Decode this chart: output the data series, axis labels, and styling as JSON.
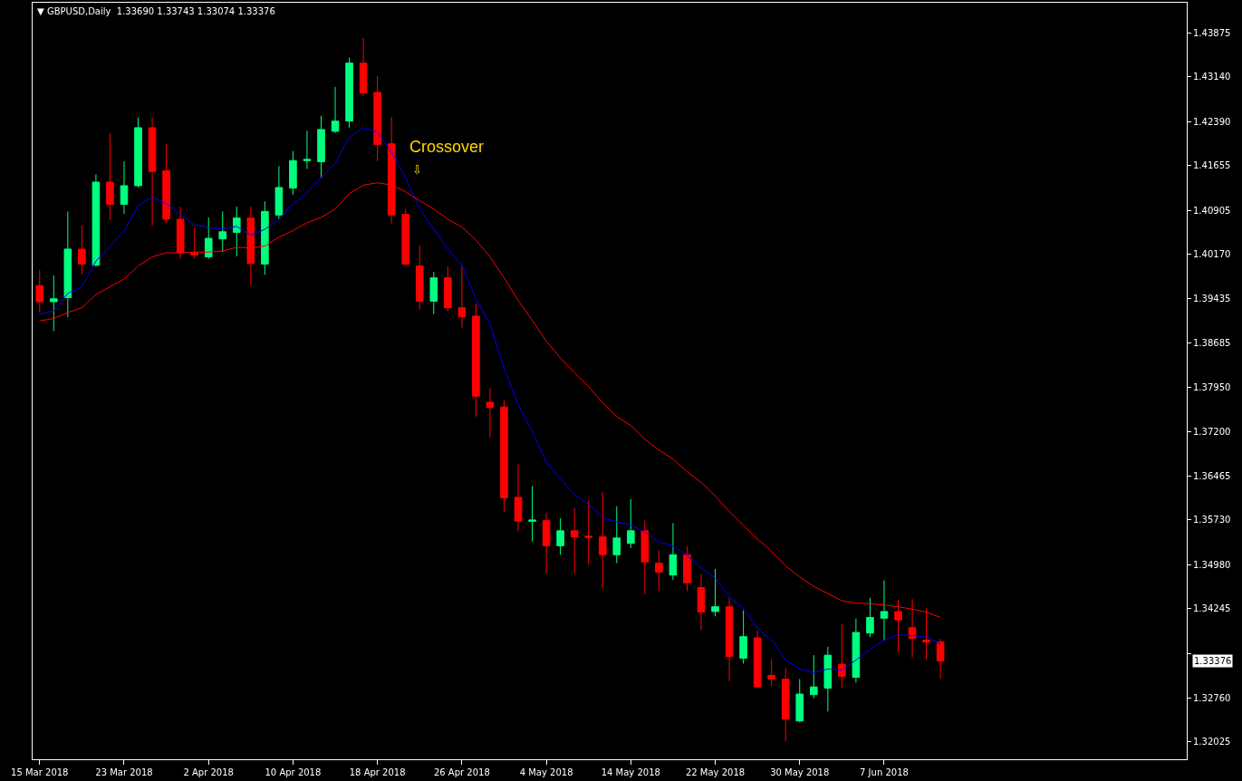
{
  "chart_data": {
    "type": "candlestick",
    "title": "▼ GBPUSD,Daily  1.33690 1.33743 1.33074 1.33376",
    "categories": [
      "15 Mar 2018",
      null,
      null,
      null,
      null,
      null,
      "23 Mar 2018",
      null,
      null,
      null,
      null,
      null,
      "2 Apr 2018",
      null,
      null,
      null,
      null,
      null,
      "10 Apr 2018",
      null,
      null,
      null,
      null,
      null,
      "18 Apr 2018",
      null,
      null,
      null,
      null,
      null,
      "26 Apr 2018",
      null,
      null,
      null,
      null,
      null,
      "4 May 2018",
      null,
      null,
      null,
      null,
      null,
      "14 May 2018",
      null,
      null,
      null,
      null,
      null,
      "22 May 2018",
      null,
      null,
      null,
      null,
      null,
      "30 May 2018",
      null,
      null,
      null,
      null,
      null,
      "7 Jun 2018",
      null,
      null,
      null,
      null,
      null,
      null,
      null,
      null,
      null,
      null,
      null,
      null,
      null,
      null,
      null,
      null,
      null,
      null,
      null,
      null,
      null
    ],
    "ohlc": [
      [
        1.3965,
        1.3991,
        1.392,
        1.3938
      ],
      [
        1.3938,
        1.3982,
        1.3889,
        1.3943
      ],
      [
        1.3945,
        1.4089,
        1.3912,
        1.4026
      ],
      [
        1.4026,
        1.4066,
        1.3983,
        1.4001
      ],
      [
        1.3999,
        1.4151,
        1.3997,
        1.4138
      ],
      [
        1.4138,
        1.422,
        1.4075,
        1.4101
      ],
      [
        1.4101,
        1.4173,
        1.4085,
        1.4132
      ],
      [
        1.4132,
        1.4246,
        1.4129,
        1.4229
      ],
      [
        1.4229,
        1.4246,
        1.4065,
        1.4156
      ],
      [
        1.4157,
        1.4202,
        1.407,
        1.4076
      ],
      [
        1.4076,
        1.4097,
        1.401,
        1.402
      ],
      [
        1.402,
        1.4061,
        1.401,
        1.4016
      ],
      [
        1.4013,
        1.4079,
        1.401,
        1.4044
      ],
      [
        1.4043,
        1.4089,
        1.4021,
        1.4055
      ],
      [
        1.4054,
        1.4097,
        1.4014,
        1.4078
      ],
      [
        1.4078,
        1.4097,
        1.3966,
        1.4002
      ],
      [
        1.4001,
        1.4106,
        1.3983,
        1.4089
      ],
      [
        1.4083,
        1.4165,
        1.4076,
        1.4129
      ],
      [
        1.4128,
        1.419,
        1.4117,
        1.4174
      ],
      [
        1.4174,
        1.4224,
        1.416,
        1.4176
      ],
      [
        1.4172,
        1.4249,
        1.4145,
        1.4226
      ],
      [
        1.4223,
        1.4297,
        1.422,
        1.424
      ],
      [
        1.424,
        1.4346,
        1.4229,
        1.4337
      ],
      [
        1.4337,
        1.4379,
        1.4282,
        1.4287
      ],
      [
        1.4288,
        1.4315,
        1.4173,
        1.4201
      ],
      [
        1.4202,
        1.4247,
        1.4069,
        1.4083
      ],
      [
        1.4084,
        1.4093,
        1.3998,
        1.4001
      ],
      [
        1.3998,
        1.4032,
        1.3925,
        1.3939
      ],
      [
        1.3939,
        1.3988,
        1.3917,
        1.3978
      ],
      [
        1.3978,
        1.3997,
        1.3922,
        1.3928
      ],
      [
        1.3928,
        1.3998,
        1.3895,
        1.3913
      ],
      [
        1.3914,
        1.3935,
        1.3746,
        1.378
      ],
      [
        1.377,
        1.3793,
        1.3711,
        1.3761
      ],
      [
        1.3762,
        1.3773,
        1.3587,
        1.361
      ],
      [
        1.3611,
        1.3666,
        1.3554,
        1.3571
      ],
      [
        1.3571,
        1.363,
        1.3537,
        1.3573
      ],
      [
        1.3572,
        1.3585,
        1.3484,
        1.353
      ],
      [
        1.353,
        1.3576,
        1.3515,
        1.3555
      ],
      [
        1.3555,
        1.3593,
        1.3483,
        1.3545
      ],
      [
        1.3546,
        1.3606,
        1.3499,
        1.3544
      ],
      [
        1.3545,
        1.362,
        1.3459,
        1.3515
      ],
      [
        1.3515,
        1.3596,
        1.3501,
        1.3543
      ],
      [
        1.3534,
        1.3608,
        1.3526,
        1.3555
      ],
      [
        1.3555,
        1.3572,
        1.3449,
        1.3503
      ],
      [
        1.3501,
        1.3522,
        1.3454,
        1.3486
      ],
      [
        1.3481,
        1.3568,
        1.3473,
        1.3515
      ],
      [
        1.3515,
        1.3529,
        1.3454,
        1.3468
      ],
      [
        1.346,
        1.3482,
        1.3389,
        1.3419
      ],
      [
        1.342,
        1.3491,
        1.3412,
        1.3428
      ],
      [
        1.3428,
        1.3442,
        1.3304,
        1.3345
      ],
      [
        1.3342,
        1.3422,
        1.3333,
        1.3378
      ],
      [
        1.3376,
        1.3388,
        1.3293,
        1.3294
      ],
      [
        1.3313,
        1.334,
        1.3295,
        1.3307
      ],
      [
        1.3307,
        1.3325,
        1.3203,
        1.324
      ],
      [
        1.3237,
        1.3307,
        1.3235,
        1.3282
      ],
      [
        1.3281,
        1.3347,
        1.3275,
        1.3294
      ],
      [
        1.3292,
        1.3361,
        1.3253,
        1.3347
      ],
      [
        1.3332,
        1.3399,
        1.3293,
        1.3312
      ],
      [
        1.331,
        1.3408,
        1.3301,
        1.3385
      ],
      [
        1.3384,
        1.3443,
        1.3377,
        1.341
      ],
      [
        1.3409,
        1.3472,
        1.3372,
        1.342
      ],
      [
        1.342,
        1.344,
        1.3352,
        1.3406
      ],
      [
        1.3393,
        1.3441,
        1.3343,
        1.3375
      ],
      [
        1.3372,
        1.3425,
        1.334,
        1.3369
      ],
      [
        1.3369,
        1.33743,
        1.33074,
        1.33376
      ],
      null,
      null,
      null,
      null,
      null,
      null,
      null,
      null,
      null,
      null,
      null,
      null,
      null,
      null,
      null,
      null,
      null
    ],
    "colors": [
      "#ff0000",
      "#00ff7f",
      "#00ff7f",
      "#ff0000",
      "#00ff7f",
      "#ff0000",
      "#00ff7f",
      "#00ff7f",
      "#ff0000",
      "#ff0000",
      "#ff0000",
      "#ff0000",
      "#00ff7f",
      "#00ff7f",
      "#00ff7f",
      "#ff0000",
      "#00ff7f",
      "#00ff7f",
      "#00ff7f",
      "#00ff7f",
      "#00ff7f",
      "#00ff7f",
      "#00ff7f",
      "#ff0000",
      "#ff0000",
      "#ff0000",
      "#ff0000",
      "#ff0000",
      "#00ff7f",
      "#ff0000",
      "#ff0000",
      "#ff0000",
      "#ff0000",
      "#ff0000",
      "#ff0000",
      "#00ff7f",
      "#ff0000",
      "#00ff7f",
      "#ff0000",
      "#ff0000",
      "#ff0000",
      "#00ff7f",
      "#00ff7f",
      "#ff0000",
      "#ff0000",
      "#00ff7f",
      "#ff0000",
      "#ff0000",
      "#00ff7f",
      "#ff0000",
      "#00ff7f",
      "#ff0000",
      "#ff0000",
      "#ff0000",
      "#00ff7f",
      "#00ff7f",
      "#00ff7f",
      "#ff0000",
      "#00ff7f",
      "#00ff7f",
      "#00ff7f",
      "#ff0000",
      "#ff0000",
      "#ff0000",
      "#ff0000",
      null,
      null,
      null,
      null,
      null,
      null,
      null,
      null,
      null,
      null,
      null,
      null,
      null,
      null,
      null,
      null,
      null
    ],
    "series": [
      {
        "type": "line",
        "color": "#0000ff",
        "values": [
          1.3917,
          1.3923,
          1.3952,
          1.3963,
          1.4006,
          1.4031,
          1.4056,
          1.4099,
          1.4113,
          1.4102,
          1.4084,
          1.4067,
          1.4062,
          1.406,
          1.4064,
          1.4049,
          1.4059,
          1.4076,
          1.4102,
          1.412,
          1.4146,
          1.417,
          1.4213,
          1.4229,
          1.4221,
          1.4188,
          1.4145,
          1.4094,
          1.4059,
          1.4026,
          1.3999,
          1.3943,
          1.39,
          1.3827,
          1.3766,
          1.3721,
          1.367,
          1.3642,
          1.3616,
          1.3599,
          1.3577,
          1.357,
          1.3565,
          1.3553,
          1.3536,
          1.353,
          1.3514,
          1.3493,
          1.3476,
          1.3444,
          1.3425,
          1.3392,
          1.3372,
          1.3339,
          1.3324,
          1.3318,
          1.3324,
          1.3322,
          1.3339,
          1.3357,
          1.3372,
          1.3381,
          1.338,
          1.3377,
          1.3366,
          null,
          null,
          null,
          null,
          null,
          null,
          null,
          null,
          null,
          null,
          null,
          null,
          null,
          null,
          null,
          null,
          null
        ]
      },
      {
        "type": "line",
        "color": "#ff0000",
        "values": [
          1.3906,
          1.391,
          1.392,
          1.3928,
          1.395,
          1.3963,
          1.3976,
          1.3998,
          1.4013,
          1.402,
          1.402,
          1.4021,
          1.4021,
          1.4023,
          1.4029,
          1.4028,
          1.4031,
          1.4046,
          1.4057,
          1.407,
          1.4079,
          1.4093,
          1.4119,
          1.4133,
          1.4137,
          1.4133,
          1.4122,
          1.4107,
          1.4093,
          1.4076,
          1.4063,
          1.4041,
          1.4013,
          1.3978,
          1.394,
          1.3907,
          1.3872,
          1.3844,
          1.3819,
          1.3796,
          1.3769,
          1.3746,
          1.3731,
          1.3708,
          1.369,
          1.3675,
          1.3654,
          1.3636,
          1.3613,
          1.3587,
          1.3564,
          1.3541,
          1.3521,
          1.3496,
          1.3478,
          1.3462,
          1.345,
          1.3438,
          1.3434,
          1.3433,
          1.3431,
          1.3428,
          1.3424,
          1.3419,
          1.341,
          null,
          null,
          null,
          null,
          null,
          null,
          null,
          null,
          null,
          null,
          null,
          null,
          null,
          null,
          null,
          null,
          null
        ]
      }
    ],
    "ylim": [
      1.3173,
      1.4438
    ],
    "yticks": [
      1.43875,
      {
        "value": 1.4314,
        "label": "1.43140"
      },
      {
        "value": 1.4239,
        "label": "1.42390"
      },
      1.41655,
      1.40905,
      {
        "value": 1.4017,
        "label": "1.40170"
      },
      1.39435,
      1.38685,
      {
        "value": 1.3795,
        "label": "1.37950"
      },
      {
        "value": 1.372,
        "label": "1.37200"
      },
      1.36465,
      {
        "value": 1.3573,
        "label": "1.35730"
      },
      {
        "value": 1.3498,
        "label": "1.34980"
      },
      1.34245,
      {
        "value": 1.33495,
        "label": null
      },
      {
        "value": 1.3276,
        "label": "1.32760"
      },
      1.32025
    ],
    "annotations": [
      "Crossover",
      "⇩",
      "1.33376"
    ]
  }
}
